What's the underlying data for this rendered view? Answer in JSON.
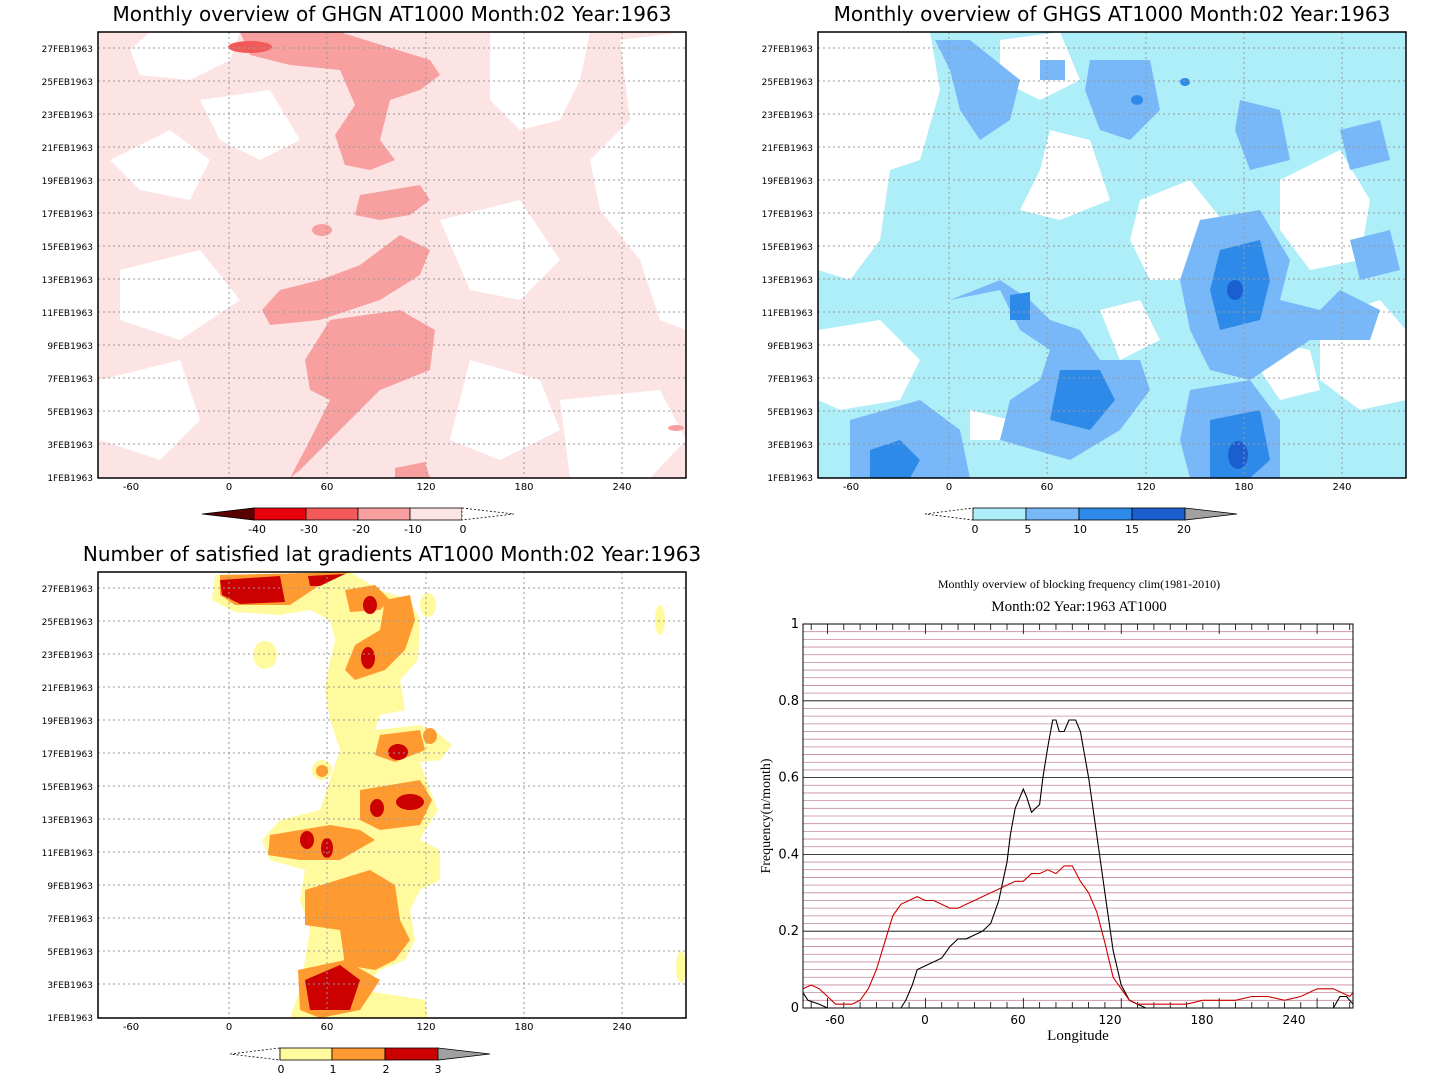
{
  "dates": [
    "1FEB1963",
    "3FEB1963",
    "5FEB1963",
    "7FEB1963",
    "9FEB1963",
    "11FEB1963",
    "13FEB1963",
    "15FEB1963",
    "17FEB1963",
    "19FEB1963",
    "21FEB1963",
    "23FEB1963",
    "25FEB1963",
    "27FEB1963"
  ],
  "lon_ticks": [
    "-60",
    "0",
    "60",
    "120",
    "180",
    "240"
  ],
  "panels": {
    "ghgn": {
      "title": "Monthly overview of GHGN AT1000 Month:02 Year:1963",
      "colorbar": {
        "labels": [
          "-40",
          "-30",
          "-20",
          "-10",
          "0"
        ],
        "colors": [
          "#5a0000",
          "#e8000a",
          "#f25a5a",
          "#f8a0a0",
          "#fde4e4"
        ]
      }
    },
    "ghgs": {
      "title": "Monthly overview of GHGS AT1000 Month:02 Year:1963",
      "colorbar": {
        "labels": [
          "0",
          "5",
          "10",
          "15",
          "20"
        ],
        "colors": [
          "#aeeef8",
          "#78b8f8",
          "#2e8ae8",
          "#1a5ed0",
          "#a0a0a0"
        ]
      }
    },
    "lat": {
      "title": "Number of satisfied lat gradients AT1000 Month:02 Year:1963",
      "colorbar": {
        "labels": [
          "0",
          "1",
          "2",
          "3"
        ],
        "colors": [
          "#fffa9e",
          "#ff9a30",
          "#cc0000",
          "#a0a0a0"
        ]
      }
    },
    "freq": {
      "title": "Monthly overview of blocking frequency clim(1981-2010)",
      "subtitle": "Month:02 Year:1963  AT1000",
      "xlabel": "Longitude",
      "ylabel": "Frequency(n/month)"
    }
  },
  "chart_data": [
    {
      "type": "heatmap",
      "title": "Monthly overview of GHGN AT1000 Month:02 Year:1963",
      "x_ticks": [
        -60,
        0,
        60,
        120,
        180,
        240
      ],
      "y_ticks": [
        "1FEB1963",
        "3FEB1963",
        "5FEB1963",
        "7FEB1963",
        "9FEB1963",
        "11FEB1963",
        "13FEB1963",
        "15FEB1963",
        "17FEB1963",
        "19FEB1963",
        "21FEB1963",
        "23FEB1963",
        "25FEB1963",
        "27FEB1963"
      ],
      "colorbar": [
        -40,
        -30,
        -20,
        -10,
        0
      ]
    },
    {
      "type": "heatmap",
      "title": "Monthly overview of GHGS AT1000 Month:02 Year:1963",
      "x_ticks": [
        -60,
        0,
        60,
        120,
        180,
        240
      ],
      "colorbar": [
        0,
        5,
        10,
        15,
        20
      ]
    },
    {
      "type": "heatmap",
      "title": "Number of satisfied lat gradients AT1000 Month:02 Year:1963",
      "x_ticks": [
        -60,
        0,
        60,
        120,
        180,
        240
      ],
      "colorbar": [
        0,
        1,
        2,
        3
      ]
    },
    {
      "type": "line",
      "title": "Monthly overview of blocking frequency clim(1981-2010)",
      "subtitle": "Month:02 Year:1963  AT1000",
      "xlabel": "Longitude",
      "ylabel": "Frequency(n/month)",
      "xlim": [
        -75,
        262
      ],
      "ylim": [
        0,
        1
      ],
      "x_ticks": [
        -60,
        0,
        60,
        120,
        180,
        240
      ],
      "y_ticks": [
        0,
        0.2,
        0.4,
        0.6,
        0.8,
        1
      ],
      "series": [
        {
          "color": "#000000",
          "x": [
            -75,
            -72,
            -65,
            -60,
            -15,
            -12,
            -8,
            -5,
            0,
            10,
            15,
            20,
            25,
            30,
            35,
            40,
            45,
            50,
            52,
            55,
            58,
            60,
            62,
            65,
            70,
            72,
            75,
            78,
            80,
            82,
            85,
            88,
            90,
            92,
            95,
            100,
            105,
            110,
            115,
            120,
            125,
            130,
            135,
            140,
            145,
            150,
            160,
            180,
            200,
            220,
            240,
            250,
            254,
            258,
            262
          ],
          "y": [
            0.04,
            0.02,
            0.01,
            0,
            0,
            0.02,
            0.06,
            0.1,
            0.11,
            0.13,
            0.16,
            0.18,
            0.18,
            0.19,
            0.2,
            0.22,
            0.28,
            0.38,
            0.45,
            0.52,
            0.55,
            0.57,
            0.55,
            0.51,
            0.53,
            0.6,
            0.68,
            0.75,
            0.75,
            0.72,
            0.72,
            0.75,
            0.75,
            0.75,
            0.72,
            0.6,
            0.45,
            0.3,
            0.15,
            0.06,
            0.02,
            0.01,
            0,
            0,
            0,
            0,
            0,
            0,
            0,
            0,
            0,
            0,
            0.03,
            0.03,
            0.01
          ]
        },
        {
          "color": "#cc0000",
          "x": [
            -75,
            -70,
            -65,
            -60,
            -55,
            -50,
            -45,
            -40,
            -35,
            -30,
            -25,
            -20,
            -15,
            -10,
            -5,
            0,
            5,
            10,
            15,
            20,
            25,
            30,
            35,
            40,
            45,
            50,
            55,
            60,
            65,
            70,
            75,
            80,
            85,
            90,
            95,
            100,
            105,
            110,
            115,
            120,
            125,
            130,
            135,
            140,
            145,
            150,
            160,
            170,
            180,
            190,
            200,
            210,
            220,
            230,
            240,
            250,
            255,
            260,
            262
          ],
          "y": [
            0.05,
            0.06,
            0.05,
            0.03,
            0.01,
            0.01,
            0.01,
            0.02,
            0.05,
            0.1,
            0.17,
            0.24,
            0.27,
            0.28,
            0.29,
            0.28,
            0.28,
            0.27,
            0.26,
            0.26,
            0.27,
            0.28,
            0.29,
            0.3,
            0.31,
            0.32,
            0.33,
            0.33,
            0.35,
            0.35,
            0.36,
            0.35,
            0.37,
            0.37,
            0.33,
            0.3,
            0.25,
            0.17,
            0.08,
            0.05,
            0.02,
            0.01,
            0.01,
            0.01,
            0.01,
            0.01,
            0.01,
            0.02,
            0.02,
            0.02,
            0.03,
            0.03,
            0.02,
            0.03,
            0.05,
            0.05,
            0.04,
            0.03,
            0.04
          ]
        }
      ]
    }
  ]
}
